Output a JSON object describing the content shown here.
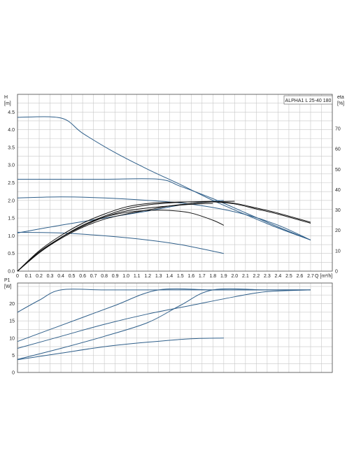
{
  "model_label": "ALPHA1 L 25-40 180",
  "colors": {
    "curve": "#2f5f8a",
    "eta": "#111111",
    "grid": "#c8c8c8",
    "frame": "#444444"
  },
  "chart_data": [
    {
      "type": "line",
      "name": "H/eta",
      "ylabel": "H\n[m]",
      "y2label": "eta\n[%]",
      "xlabel": "Q [m³/h]",
      "xlim": [
        0,
        2.9
      ],
      "ylim": [
        0,
        5.0
      ],
      "y2lim": [
        0,
        86.8
      ],
      "x_ticks": [
        "0",
        "0.1",
        "0.2",
        "0.3",
        "0.4",
        "0.5",
        "0.6",
        "0.7",
        "0.8",
        "0.9",
        "1.0",
        "1.1",
        "1.2",
        "1.3",
        "1.4",
        "1.5",
        "1.6",
        "1.7",
        "1.8",
        "1.9",
        "2.0",
        "2.1",
        "2.2",
        "2.3",
        "2.4",
        "2.5",
        "2.6",
        "2.7"
      ],
      "y_ticks": [
        "0.0",
        "0.5",
        "1.0",
        "1.5",
        "2.0",
        "2.5",
        "3.0",
        "3.5",
        "4.0",
        "4.5"
      ],
      "y2_ticks": [
        "0",
        "10",
        "20",
        "30",
        "40",
        "50",
        "60",
        "70"
      ],
      "grid": true,
      "series": [
        {
          "kind": "head",
          "x": [
            0,
            0.4,
            0.6,
            0.9,
            1.2,
            1.5,
            1.8,
            2.1,
            2.4,
            2.7
          ],
          "y": [
            4.35,
            4.33,
            3.9,
            3.35,
            2.88,
            2.45,
            2.0,
            1.6,
            1.22,
            0.88
          ]
        },
        {
          "kind": "head",
          "x": [
            0,
            0.4,
            0.8,
            1.3,
            1.5,
            1.8,
            2.1,
            2.4,
            2.7
          ],
          "y": [
            2.6,
            2.6,
            2.6,
            2.6,
            2.4,
            2.05,
            1.65,
            1.25,
            0.88
          ]
        },
        {
          "kind": "head",
          "x": [
            0,
            0.4,
            0.8,
            1.2,
            1.5,
            1.8,
            2.1,
            2.4,
            2.7
          ],
          "y": [
            2.07,
            2.1,
            2.07,
            2.0,
            1.93,
            1.8,
            1.6,
            1.3,
            0.88
          ]
        },
        {
          "kind": "head",
          "x": [
            0,
            0.4,
            0.8,
            1.2,
            1.5,
            1.8,
            1.9
          ],
          "y": [
            1.08,
            1.3,
            1.5,
            1.7,
            1.87,
            1.98,
            2.0
          ]
        },
        {
          "kind": "head",
          "x": [
            0,
            0.4,
            0.8,
            1.2,
            1.5,
            1.9
          ],
          "y": [
            1.1,
            1.08,
            1.0,
            0.88,
            0.75,
            0.5
          ]
        },
        {
          "kind": "eta",
          "x": [
            0,
            0.2,
            0.4,
            0.6,
            0.8,
            1.0,
            1.2,
            1.4,
            1.6,
            1.8,
            2.0,
            2.2,
            2.4,
            2.7
          ],
          "y": [
            0,
            10,
            17.5,
            23.5,
            28,
            31.5,
            33.2,
            33.8,
            34,
            34,
            33,
            30.5,
            28,
            23.5
          ]
        },
        {
          "kind": "eta",
          "x": [
            0,
            0.2,
            0.4,
            0.6,
            0.8,
            1.0,
            1.2,
            1.4,
            1.6,
            1.8,
            2.0,
            2.2,
            2.4,
            2.7
          ],
          "y": [
            0,
            9,
            16.5,
            22.5,
            27,
            30.5,
            32.5,
            33.5,
            34,
            34.2,
            33.3,
            31,
            28.5,
            24
          ]
        },
        {
          "kind": "eta",
          "x": [
            0,
            0.2,
            0.4,
            0.6,
            0.8,
            1.0,
            1.2,
            1.4,
            1.6,
            1.8
          ],
          "y": [
            0,
            9,
            16.5,
            22,
            26.5,
            29.5,
            31,
            32,
            32.8,
            33.3
          ]
        },
        {
          "kind": "eta",
          "x": [
            0,
            0.2,
            0.4,
            0.6,
            0.8,
            1.0,
            1.2,
            1.4,
            1.6,
            1.8,
            1.9
          ],
          "y": [
            0,
            9.5,
            16.5,
            22.5,
            26.5,
            28.8,
            29.8,
            29.8,
            28.5,
            25,
            22.5
          ]
        },
        {
          "kind": "eta",
          "x": [
            0,
            0.2,
            0.4,
            0.6,
            0.8,
            1.0,
            1.2,
            1.4,
            1.6,
            1.8,
            2.0
          ],
          "y": [
            0,
            9,
            16,
            21.5,
            25.5,
            28,
            30,
            32,
            33.2,
            34,
            34.3
          ]
        }
      ]
    },
    {
      "type": "line",
      "name": "P1",
      "ylabel": "P1\n[W]",
      "xlim": [
        0,
        2.9
      ],
      "ylim": [
        0,
        26
      ],
      "y_ticks": [
        "0",
        "5",
        "10",
        "15",
        "20"
      ],
      "grid": true,
      "series": [
        {
          "x": [
            0,
            0.2,
            0.4,
            0.8,
            1.3,
            1.8,
            2.3,
            2.7
          ],
          "y": [
            17.5,
            21,
            24,
            24,
            24,
            24,
            24,
            24
          ]
        },
        {
          "x": [
            0,
            0.3,
            0.6,
            0.9,
            1.3,
            1.8,
            2.3,
            2.7
          ],
          "y": [
            9,
            12.5,
            16,
            19.5,
            24,
            24,
            24,
            24
          ]
        },
        {
          "x": [
            0,
            0.4,
            0.8,
            1.2,
            1.6,
            2.0,
            2.3,
            2.7
          ],
          "y": [
            7,
            10.5,
            14,
            17,
            19.5,
            22,
            23.5,
            24
          ]
        },
        {
          "x": [
            0,
            0.4,
            0.8,
            1.2,
            1.5,
            1.8,
            2.3,
            2.7
          ],
          "y": [
            3.8,
            7,
            10.5,
            14.5,
            19.5,
            24,
            24,
            24
          ]
        },
        {
          "x": [
            0,
            0.4,
            0.8,
            1.2,
            1.6,
            1.9
          ],
          "y": [
            3.7,
            5.6,
            7.5,
            8.8,
            9.8,
            10
          ]
        }
      ]
    }
  ]
}
